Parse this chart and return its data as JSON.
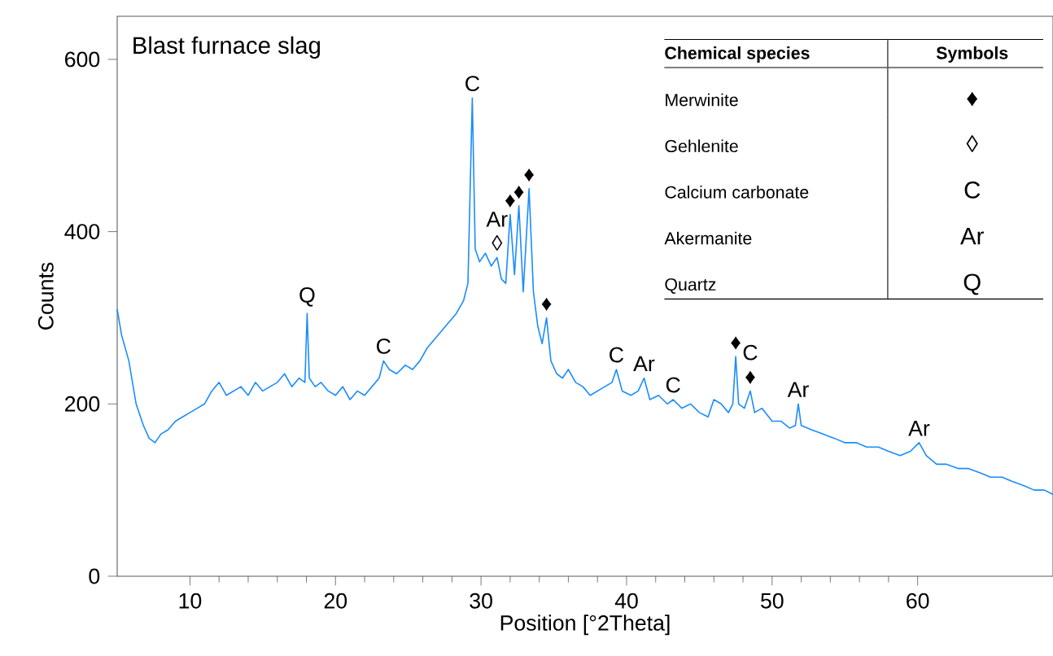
{
  "chart_data": {
    "type": "line",
    "title": "Blast furnace slag",
    "xlabel": "Position [°2Theta]",
    "ylabel": "Counts",
    "xlim": [
      5,
      69.3
    ],
    "ylim": [
      0,
      650
    ],
    "xticks": [
      10,
      20,
      30,
      40,
      50,
      60
    ],
    "yticks": [
      0,
      200,
      400,
      600
    ],
    "grid": false,
    "marker": "none",
    "line_style": "solid",
    "series": [
      {
        "color": "#1a8cff",
        "x": [
          5,
          5.3,
          5.8,
          6.3,
          6.8,
          7.2,
          7.6,
          8,
          8.5,
          9,
          9.5,
          10,
          10.5,
          11,
          11.5,
          12,
          12.5,
          13,
          13.5,
          14,
          14.5,
          15,
          15.5,
          16,
          16.5,
          17,
          17.5,
          17.9,
          18.05,
          18.2,
          18.6,
          19,
          19.5,
          20,
          20.5,
          21,
          21.5,
          22,
          22.5,
          23,
          23.3,
          23.7,
          24.2,
          24.8,
          25.3,
          25.8,
          26.3,
          26.8,
          27.3,
          27.8,
          28.3,
          28.8,
          29.1,
          29.4,
          29.6,
          29.9,
          30.3,
          30.7,
          31.1,
          31.4,
          31.7,
          32,
          32.3,
          32.6,
          32.9,
          33.3,
          33.6,
          33.9,
          34.2,
          34.5,
          34.8,
          35.2,
          35.6,
          36,
          36.5,
          37,
          37.5,
          38,
          38.5,
          39,
          39.3,
          39.7,
          40.3,
          40.8,
          41.2,
          41.6,
          42.2,
          42.8,
          43.2,
          43.8,
          44.4,
          45,
          45.6,
          46,
          46.5,
          47,
          47.3,
          47.5,
          47.7,
          48.1,
          48.5,
          48.8,
          49.3,
          50,
          50.6,
          51.2,
          51.6,
          51.8,
          52,
          52.7,
          53.5,
          54.3,
          55,
          55.8,
          56.5,
          57.3,
          58,
          58.8,
          59.5,
          60.1,
          60.6,
          61.3,
          62,
          62.8,
          63.5,
          64.3,
          65,
          65.8,
          66.5,
          67.3,
          68,
          68.7,
          69.3
        ],
        "values": [
          310,
          280,
          250,
          200,
          175,
          160,
          155,
          165,
          170,
          180,
          185,
          190,
          195,
          200,
          215,
          225,
          210,
          215,
          220,
          210,
          225,
          215,
          220,
          225,
          235,
          220,
          230,
          225,
          305,
          230,
          220,
          225,
          215,
          210,
          220,
          205,
          215,
          210,
          220,
          230,
          250,
          240,
          235,
          245,
          240,
          250,
          265,
          275,
          285,
          295,
          305,
          320,
          340,
          555,
          380,
          365,
          375,
          360,
          370,
          345,
          340,
          420,
          350,
          430,
          330,
          450,
          330,
          290,
          270,
          300,
          250,
          235,
          230,
          240,
          225,
          220,
          210,
          215,
          220,
          225,
          240,
          215,
          210,
          215,
          230,
          205,
          210,
          200,
          205,
          195,
          200,
          190,
          185,
          205,
          200,
          190,
          200,
          255,
          200,
          195,
          215,
          190,
          195,
          180,
          180,
          172,
          175,
          200,
          175,
          170,
          165,
          160,
          155,
          155,
          150,
          150,
          145,
          140,
          145,
          155,
          140,
          130,
          130,
          125,
          125,
          120,
          115,
          115,
          110,
          105,
          100,
          100,
          95
        ]
      }
    ],
    "annotations": [
      "Chemical species",
      "Symbols",
      "Merwinite",
      "♦",
      "Gehlenite",
      "◊",
      "Calcium carbonate",
      "C",
      "Akermanite",
      "Ar",
      "Quartz",
      "Q",
      {
        "text": "Q",
        "x": 18.05,
        "y": 305
      },
      {
        "text": "C",
        "x": 23.3,
        "y": 250
      },
      {
        "text": "C",
        "x": 29.4,
        "y": 555
      },
      {
        "text": "◊",
        "x": 31.1,
        "y": 370
      },
      {
        "text": "Ar",
        "x": 31.1,
        "y": 370
      },
      {
        "text": "♦",
        "x": 32,
        "y": 420
      },
      {
        "text": "♦",
        "x": 32.6,
        "y": 430
      },
      {
        "text": "♦",
        "x": 33.3,
        "y": 450
      },
      {
        "text": "♦",
        "x": 34.5,
        "y": 300
      },
      {
        "text": "C",
        "x": 39.3,
        "y": 240
      },
      {
        "text": "Ar",
        "x": 41.2,
        "y": 230
      },
      {
        "text": "C",
        "x": 43.2,
        "y": 205
      },
      {
        "text": "♦",
        "x": 47.5,
        "y": 255
      },
      {
        "text": "♦",
        "x": 48.5,
        "y": 215
      },
      {
        "text": "C",
        "x": 48.5,
        "y": 215
      },
      {
        "text": "Ar",
        "x": 51.8,
        "y": 200
      },
      {
        "text": "Ar",
        "x": 60.1,
        "y": 155
      }
    ]
  }
}
